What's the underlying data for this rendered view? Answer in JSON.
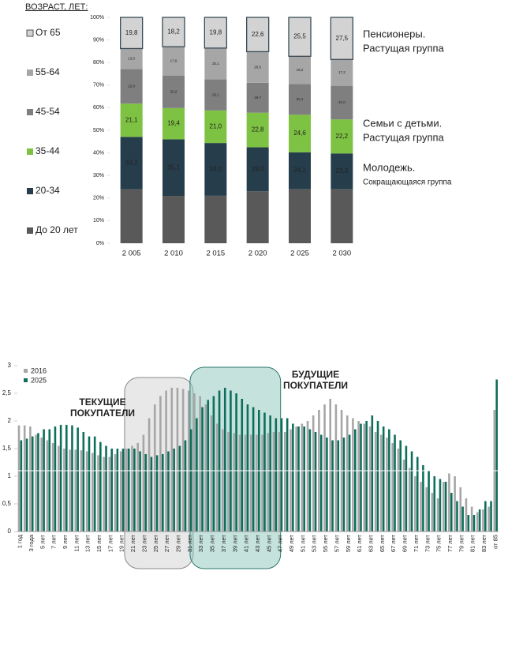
{
  "chart_data": [
    {
      "type": "stacked_percent",
      "axis_title": "ВОЗРАСТ, ЛЕТ:",
      "categories": [
        "2 005",
        "2 010",
        "2 015",
        "2 020",
        "2 025",
        "2 030"
      ],
      "ylim": [
        0,
        100
      ],
      "yticks": [
        {
          "value": 0,
          "label": "0%"
        },
        {
          "value": 10,
          "label": "10%"
        },
        {
          "value": 20,
          "label": "20%"
        },
        {
          "value": 30,
          "label": "30%"
        },
        {
          "value": 40,
          "label": "40%"
        },
        {
          "value": 50,
          "label": "50%"
        },
        {
          "value": 60,
          "label": "60%"
        },
        {
          "value": 70,
          "label": "70%"
        },
        {
          "value": 80,
          "label": "80%"
        },
        {
          "value": 90,
          "label": "90%"
        },
        {
          "value": 100,
          "label": "100%"
        }
      ],
      "series": [
        {
          "name": "До 20 лет",
          "color": "#595959",
          "values": [
            34.4,
            29.4,
            30.6,
            34.2,
            35.5,
            35.4
          ]
        },
        {
          "name": "20-34",
          "color": "#263d4c",
          "values": [
            33.2,
            35.1,
            34.0,
            29.0,
            24.1,
            23.3
          ],
          "value_labels": [
            "33,2",
            "35,1",
            "34,0",
            "29,0",
            "24,1",
            "23,3"
          ]
        },
        {
          "name": "35-44",
          "color": "#7dc242",
          "values": [
            21.1,
            19.4,
            21.0,
            22.8,
            24.6,
            22.2
          ],
          "value_labels": [
            "21,1",
            "19,4",
            "21,0",
            "22,8",
            "24,6",
            "22,2"
          ]
        },
        {
          "name": "45-54",
          "color": "#7f7f7f",
          "values": [
            22.0,
            20.2,
            20.1,
            19.7,
            20.1,
            22.0
          ],
          "value_labels": [
            "22,0",
            "20,2",
            "20,1",
            "19,7",
            "20,1",
            "22,0"
          ]
        },
        {
          "name": "55-64",
          "color": "#a6a6a6",
          "values": [
            13.0,
            17.9,
            20.1,
            20.5,
            18.2,
            17.2
          ],
          "value_labels": [
            "13,0",
            "17,9",
            "20,1",
            "20,5",
            "18,2",
            "17,2"
          ]
        },
        {
          "name": "От 65",
          "color": "#d3d3d3",
          "values": [
            19.8,
            18.2,
            19.8,
            22.6,
            25.5,
            27.5
          ],
          "value_labels": [
            "19,8",
            "18,2",
            "19,8",
            "22,6",
            "25,5",
            "27,5"
          ]
        }
      ],
      "annotations": [
        {
          "lines": [
            "Пенсионеры.",
            "Растущая группа"
          ]
        },
        {
          "lines": [
            "Семьи с детьми.",
            "Растущая группа"
          ]
        },
        {
          "lines": [
            "Молодежь.",
            "Сокращающаяся группа"
          ]
        }
      ]
    },
    {
      "type": "grouped_bar",
      "categories": [
        "1 год",
        null,
        "3 года",
        null,
        "5 лет",
        null,
        "7 лет",
        null,
        "9 лет",
        null,
        "11 лет",
        null,
        "13 лет",
        null,
        "15 лет",
        null,
        "17 лет",
        null,
        "19 лет",
        null,
        "21 лет",
        null,
        "23 лет",
        null,
        "25 лет",
        null,
        "27 лет",
        null,
        "29 лет",
        null,
        "31 лет",
        null,
        "33 лет",
        null,
        "35 лет",
        null,
        "37 лет",
        null,
        "39 лет",
        null,
        "41 лет",
        null,
        "43 лет",
        null,
        "45 лет",
        null,
        "47 лет",
        null,
        "49 лет",
        null,
        "51 лет",
        null,
        "53 лет",
        null,
        "55 лет",
        null,
        "57 лет",
        null,
        "59 лет",
        null,
        "61 лет",
        null,
        "63 лет",
        null,
        "65 лет",
        null,
        "67 лет",
        null,
        "69 лет",
        null,
        "71 лет",
        null,
        "73 лет",
        null,
        "75 лет",
        null,
        "77 лет",
        null,
        "79 лет",
        null,
        "81 лет",
        null,
        "83 лет",
        null,
        "от 85"
      ],
      "ylim": [
        0,
        3
      ],
      "yticks": [
        0,
        {
          "value": 0.5,
          "label": "0,5"
        },
        1,
        {
          "value": 1.5,
          "label": "1,5"
        },
        2,
        {
          "value": 2.5,
          "label": "2,5"
        },
        3
      ],
      "series": [
        {
          "name": "2016",
          "color": "#a6a6a6",
          "values": [
            1.92,
            1.92,
            1.9,
            1.75,
            1.7,
            1.65,
            1.6,
            1.55,
            1.5,
            1.48,
            1.48,
            1.47,
            1.45,
            1.42,
            1.38,
            1.35,
            1.35,
            1.4,
            1.45,
            1.5,
            1.55,
            1.6,
            1.75,
            2.05,
            2.3,
            2.45,
            2.55,
            2.6,
            2.6,
            2.58,
            2.55,
            2.5,
            2.45,
            2.3,
            2.1,
            1.95,
            1.85,
            1.8,
            1.78,
            1.75,
            1.75,
            1.75,
            1.75,
            1.75,
            1.78,
            1.8,
            1.8,
            1.8,
            1.85,
            1.9,
            1.95,
            2.0,
            2.1,
            2.2,
            2.3,
            2.4,
            2.3,
            2.2,
            2.1,
            2.05,
            2.0,
            1.95,
            1.9,
            1.8,
            1.75,
            1.7,
            1.6,
            1.5,
            1.3,
            1.15,
            1.0,
            0.9,
            0.8,
            0.7,
            0.6,
            0.9,
            1.05,
            1.0,
            0.8,
            0.6,
            0.45,
            0.35,
            0.4,
            0.45,
            2.2
          ]
        },
        {
          "name": "2025",
          "color": "#0e6e5c",
          "values": [
            1.65,
            1.68,
            1.72,
            1.78,
            1.85,
            1.85,
            1.9,
            1.93,
            1.93,
            1.92,
            1.88,
            1.8,
            1.72,
            1.72,
            1.62,
            1.55,
            1.5,
            1.5,
            1.5,
            1.5,
            1.5,
            1.45,
            1.4,
            1.35,
            1.38,
            1.4,
            1.45,
            1.5,
            1.55,
            1.65,
            1.85,
            2.05,
            2.25,
            2.38,
            2.45,
            2.55,
            2.6,
            2.55,
            2.5,
            2.4,
            2.3,
            2.25,
            2.2,
            2.15,
            2.1,
            2.05,
            2.05,
            2.05,
            1.95,
            1.9,
            1.9,
            1.85,
            1.8,
            1.75,
            1.7,
            1.65,
            1.65,
            1.7,
            1.75,
            1.85,
            1.95,
            2.0,
            2.1,
            2.0,
            1.9,
            1.85,
            1.75,
            1.65,
            1.55,
            1.45,
            1.35,
            1.2,
            1.1,
            1.0,
            0.95,
            0.9,
            0.7,
            0.55,
            0.45,
            0.3,
            0.3,
            0.4,
            0.55,
            0.55,
            2.75
          ]
        }
      ],
      "annotations": [
        {
          "lines": [
            "ТЕКУЩИЕ",
            "ПОКУПАТЕЛИ"
          ]
        },
        {
          "lines": [
            "БУДУЩИЕ",
            "ПОКУПАТЕЛИ"
          ]
        }
      ]
    }
  ]
}
